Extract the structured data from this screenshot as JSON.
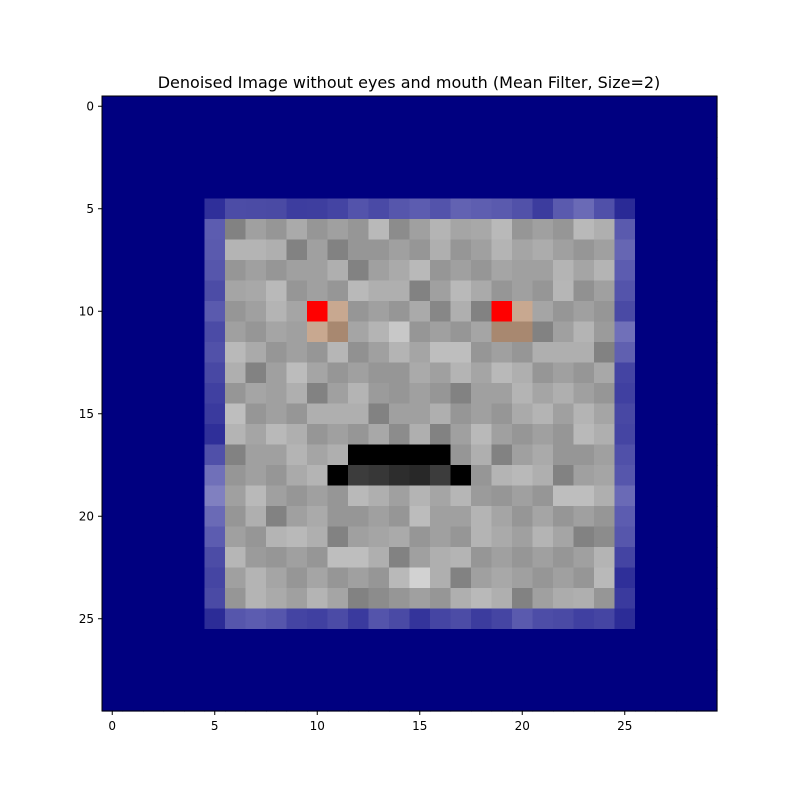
{
  "chart_data": {
    "type": "heatmap",
    "title": "Denoised Image without eyes and mouth (Mean Filter, Size=2)",
    "xlabel": "",
    "ylabel": "",
    "grid": false,
    "rows": 30,
    "cols": 30,
    "xlim": [
      -0.5,
      29.5
    ],
    "ylim": [
      29.5,
      -0.5
    ],
    "xticks": [
      0,
      5,
      10,
      15,
      20,
      25
    ],
    "yticks": [
      0,
      5,
      10,
      15,
      20,
      25
    ],
    "xtick_labels": [
      "0",
      "5",
      "10",
      "15",
      "20",
      "25"
    ],
    "ytick_labels": [
      "0",
      "5",
      "10",
      "15",
      "20",
      "25"
    ],
    "background_color": "#000080",
    "face_region": {
      "row_start": 5,
      "row_end": 25,
      "col_start": 5,
      "col_end": 25
    },
    "border_cells": [
      {
        "row": 5,
        "col": 5,
        "color": "#2f2f9a"
      },
      {
        "row": 5,
        "col": 6,
        "color": "#4c4ca6"
      },
      {
        "row": 5,
        "col": 7,
        "color": "#4b4ba5"
      },
      {
        "row": 5,
        "col": 8,
        "color": "#4a4aa4"
      },
      {
        "row": 5,
        "col": 9,
        "color": "#3d3d9f"
      },
      {
        "row": 5,
        "col": 10,
        "color": "#3e3e9f"
      },
      {
        "row": 5,
        "col": 11,
        "color": "#4444a3"
      },
      {
        "row": 5,
        "col": 12,
        "color": "#5353ab"
      },
      {
        "row": 5,
        "col": 13,
        "color": "#4a4aa6"
      },
      {
        "row": 5,
        "col": 14,
        "color": "#5656ac"
      },
      {
        "row": 5,
        "col": 15,
        "color": "#5c5cb0"
      },
      {
        "row": 5,
        "col": 16,
        "color": "#5353ab"
      },
      {
        "row": 5,
        "col": 17,
        "color": "#6262b2"
      },
      {
        "row": 5,
        "col": 18,
        "color": "#5e5eb0"
      },
      {
        "row": 5,
        "col": 19,
        "color": "#5a5aae"
      },
      {
        "row": 5,
        "col": 20,
        "color": "#5151a9"
      },
      {
        "row": 5,
        "col": 21,
        "color": "#3c3c9e"
      },
      {
        "row": 5,
        "col": 22,
        "color": "#5a5aae"
      },
      {
        "row": 5,
        "col": 23,
        "color": "#6a6ab6"
      },
      {
        "row": 5,
        "col": 24,
        "color": "#5050a9"
      },
      {
        "row": 5,
        "col": 25,
        "color": "#2a2a96"
      },
      {
        "row": 25,
        "col": 5,
        "color": "#2c2c97"
      },
      {
        "row": 25,
        "col": 6,
        "color": "#5656ac"
      },
      {
        "row": 25,
        "col": 7,
        "color": "#5c5cb0"
      },
      {
        "row": 25,
        "col": 8,
        "color": "#5656ac"
      },
      {
        "row": 25,
        "col": 9,
        "color": "#4444a3"
      },
      {
        "row": 25,
        "col": 10,
        "color": "#4040a1"
      },
      {
        "row": 25,
        "col": 11,
        "color": "#4b4ba6"
      },
      {
        "row": 25,
        "col": 12,
        "color": "#3a3a9e"
      },
      {
        "row": 25,
        "col": 13,
        "color": "#5454ab"
      },
      {
        "row": 25,
        "col": 14,
        "color": "#4a4aa5"
      },
      {
        "row": 25,
        "col": 15,
        "color": "#34349b"
      },
      {
        "row": 25,
        "col": 16,
        "color": "#4545a3"
      },
      {
        "row": 25,
        "col": 17,
        "color": "#4c4ca6"
      },
      {
        "row": 25,
        "col": 18,
        "color": "#3c3c9e"
      },
      {
        "row": 25,
        "col": 19,
        "color": "#4545a3"
      },
      {
        "row": 25,
        "col": 20,
        "color": "#5a5aae"
      },
      {
        "row": 25,
        "col": 21,
        "color": "#4d4da7"
      },
      {
        "row": 25,
        "col": 22,
        "color": "#4a4aa5"
      },
      {
        "row": 25,
        "col": 23,
        "color": "#4040a1"
      },
      {
        "row": 25,
        "col": 24,
        "color": "#4545a3"
      },
      {
        "row": 25,
        "col": 25,
        "color": "#2c2c97"
      },
      {
        "row": 6,
        "col": 5,
        "color": "#5c5cb0"
      },
      {
        "row": 7,
        "col": 5,
        "color": "#5a5aae"
      },
      {
        "row": 8,
        "col": 5,
        "color": "#5656ac"
      },
      {
        "row": 9,
        "col": 5,
        "color": "#4c4ca6"
      },
      {
        "row": 10,
        "col": 5,
        "color": "#5a5aae"
      },
      {
        "row": 11,
        "col": 5,
        "color": "#4b4ba6"
      },
      {
        "row": 12,
        "col": 5,
        "color": "#5151a9"
      },
      {
        "row": 13,
        "col": 5,
        "color": "#4848a4"
      },
      {
        "row": 14,
        "col": 5,
        "color": "#4040a1"
      },
      {
        "row": 15,
        "col": 5,
        "color": "#3a3a9e"
      },
      {
        "row": 16,
        "col": 5,
        "color": "#2f2f99"
      },
      {
        "row": 17,
        "col": 5,
        "color": "#5050a9"
      },
      {
        "row": 18,
        "col": 5,
        "color": "#7070b9"
      },
      {
        "row": 19,
        "col": 5,
        "color": "#8080c0"
      },
      {
        "row": 20,
        "col": 5,
        "color": "#6a6ab6"
      },
      {
        "row": 21,
        "col": 5,
        "color": "#5c5cb0"
      },
      {
        "row": 22,
        "col": 5,
        "color": "#4c4ca6"
      },
      {
        "row": 23,
        "col": 5,
        "color": "#4545a3"
      },
      {
        "row": 24,
        "col": 5,
        "color": "#4a4aa5"
      },
      {
        "row": 6,
        "col": 25,
        "color": "#5a5aae"
      },
      {
        "row": 7,
        "col": 25,
        "color": "#6666b3"
      },
      {
        "row": 8,
        "col": 25,
        "color": "#5c5cb0"
      },
      {
        "row": 9,
        "col": 25,
        "color": "#5454ab"
      },
      {
        "row": 10,
        "col": 25,
        "color": "#4a4aa5"
      },
      {
        "row": 11,
        "col": 25,
        "color": "#7070b9"
      },
      {
        "row": 12,
        "col": 25,
        "color": "#6060b0"
      },
      {
        "row": 13,
        "col": 25,
        "color": "#4444a3"
      },
      {
        "row": 14,
        "col": 25,
        "color": "#4040a1"
      },
      {
        "row": 15,
        "col": 25,
        "color": "#4848a4"
      },
      {
        "row": 16,
        "col": 25,
        "color": "#4545a3"
      },
      {
        "row": 17,
        "col": 25,
        "color": "#5050a9"
      },
      {
        "row": 18,
        "col": 25,
        "color": "#5656ac"
      },
      {
        "row": 19,
        "col": 25,
        "color": "#6a6ab6"
      },
      {
        "row": 20,
        "col": 25,
        "color": "#5c5cb0"
      },
      {
        "row": 21,
        "col": 25,
        "color": "#5656ac"
      },
      {
        "row": 22,
        "col": 25,
        "color": "#4444a3"
      },
      {
        "row": 23,
        "col": 25,
        "color": "#2f2f99"
      },
      {
        "row": 24,
        "col": 25,
        "color": "#3a3a9e"
      }
    ],
    "gray_values": [
      [
        170,
        140,
        165,
        150,
        175,
        135,
        168,
        160,
        172,
        150,
        180,
        165,
        190,
        200,
        185,
        160,
        175,
        190,
        165,
        170,
        182,
        160,
        150,
        175,
        130,
        180,
        170,
        165,
        185,
        175,
        188,
        150,
        180,
        165,
        160,
        170,
        185,
        175
      ],
      [
        175,
        135,
        160,
        175,
        140,
        150,
        185,
        190,
        210,
        185,
        160,
        200,
        190,
        175,
        160,
        170,
        155,
        165,
        140,
        150,
        160,
        145,
        170,
        160,
        180,
        175,
        160,
        170,
        150,
        185,
        170,
        165,
        155,
        175,
        160,
        150,
        170,
        180,
        160
      ],
      [
        165,
        160,
        175,
        150,
        140,
        170,
        185,
        180,
        170,
        155,
        125,
        140,
        150,
        130,
        140,
        135,
        160,
        170,
        145,
        155,
        175,
        180,
        160,
        140,
        150,
        165,
        170,
        160,
        145,
        155,
        175,
        165,
        150,
        140,
        160,
        170,
        155,
        165,
        175,
        140
      ],
      [
        150,
        175,
        195,
        160,
        140,
        170,
        200,
        175,
        130,
        160,
        150,
        170,
        140,
        160,
        180,
        130,
        150,
        175,
        160,
        170,
        185,
        150,
        160,
        140,
        175,
        165,
        160,
        150,
        180,
        170,
        155,
        145,
        165,
        175,
        160,
        150,
        170,
        185,
        160,
        150
      ],
      [
        160,
        175,
        190,
        180,
        150,
        160,
        175,
        180,
        190,
        165,
        180,
        170,
        150,
        175,
        160,
        140,
        150,
        165,
        175,
        150,
        160,
        170,
        155,
        165,
        150,
        180,
        170,
        160,
        165,
        175,
        150,
        160,
        170,
        155,
        165,
        175,
        150,
        160,
        170,
        155
      ]
    ],
    "eyes": [
      {
        "row": 10,
        "col": 10,
        "color": "#ff0000"
      },
      {
        "row": 10,
        "col": 11,
        "color": "#c8a890"
      },
      {
        "row": 11,
        "col": 10,
        "color": "#c8a890"
      },
      {
        "row": 11,
        "col": 11,
        "color": "#a88870"
      },
      {
        "row": 10,
        "col": 19,
        "color": "#ff0000"
      },
      {
        "row": 10,
        "col": 20,
        "color": "#c8a890"
      },
      {
        "row": 11,
        "col": 19,
        "color": "#a88870"
      },
      {
        "row": 11,
        "col": 20,
        "color": "#a88870"
      }
    ],
    "mouth": [
      {
        "row": 17,
        "col": 12,
        "value": 0
      },
      {
        "row": 17,
        "col": 13,
        "value": 0
      },
      {
        "row": 17,
        "col": 14,
        "value": 0
      },
      {
        "row": 17,
        "col": 15,
        "value": 0
      },
      {
        "row": 17,
        "col": 16,
        "value": 0
      },
      {
        "row": 18,
        "col": 11,
        "value": 0
      },
      {
        "row": 18,
        "col": 12,
        "value": 60
      },
      {
        "row": 18,
        "col": 13,
        "value": 55
      },
      {
        "row": 18,
        "col": 14,
        "value": 45
      },
      {
        "row": 18,
        "col": 15,
        "value": 40
      },
      {
        "row": 18,
        "col": 16,
        "value": 60
      },
      {
        "row": 18,
        "col": 17,
        "value": 0
      }
    ]
  }
}
